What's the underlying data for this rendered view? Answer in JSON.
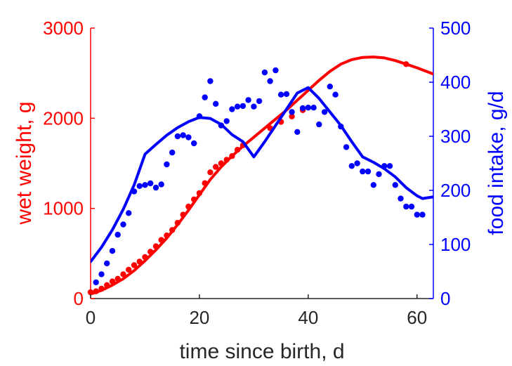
{
  "chart_data": {
    "type": "line",
    "xlabel": "time since birth, d",
    "ylabel_left": "wet weight, g",
    "ylabel_right": "food intake, g/d",
    "xlim": [
      0,
      63
    ],
    "ylim_left": [
      0,
      3000
    ],
    "ylim_right": [
      0,
      500
    ],
    "x_ticks": [
      0,
      20,
      40,
      60
    ],
    "y_ticks_left": [
      0,
      1000,
      2000,
      3000
    ],
    "y_ticks_right": [
      0,
      100,
      200,
      300,
      400,
      500
    ],
    "grid": false,
    "legend": "none",
    "colors": {
      "weight": "#ff0000",
      "intake": "#0000ff",
      "axis": "#262626"
    },
    "series": [
      {
        "axis": "left",
        "kind": "points",
        "color": "#ff0000",
        "x": [
          0,
          1,
          2,
          3,
          4,
          5,
          6,
          7,
          8,
          9,
          10,
          11,
          12,
          13,
          14,
          15,
          16,
          17,
          18,
          19,
          20,
          21,
          22,
          23,
          24,
          25,
          26,
          27,
          28,
          33,
          35,
          37,
          39,
          58
        ],
        "y": [
          70,
          80,
          110,
          150,
          190,
          220,
          270,
          320,
          370,
          410,
          460,
          520,
          580,
          650,
          700,
          760,
          840,
          930,
          1020,
          1100,
          1170,
          1280,
          1400,
          1460,
          1500,
          1540,
          1580,
          1650,
          1700,
          1890,
          1960,
          2020,
          2090,
          2600
        ]
      },
      {
        "axis": "left",
        "kind": "line",
        "color": "#ff0000",
        "x": [
          0,
          2,
          4,
          6,
          8,
          10,
          12,
          14,
          16,
          18,
          20,
          22,
          24,
          26,
          28,
          30,
          32,
          34,
          36,
          38,
          40,
          42,
          44,
          46,
          48,
          50,
          52,
          54,
          56,
          58,
          60,
          63
        ],
        "y": [
          50,
          90,
          150,
          220,
          310,
          420,
          540,
          670,
          820,
          980,
          1150,
          1320,
          1460,
          1580,
          1690,
          1790,
          1890,
          1990,
          2090,
          2200,
          2310,
          2420,
          2520,
          2600,
          2650,
          2675,
          2680,
          2670,
          2640,
          2600,
          2560,
          2490
        ]
      },
      {
        "axis": "right",
        "kind": "points",
        "color": "#0000ff",
        "x": [
          1,
          2,
          3,
          4,
          5,
          6,
          7,
          8,
          9,
          10,
          11,
          12,
          13,
          14,
          15,
          16,
          17,
          18,
          19,
          20,
          21,
          22,
          23,
          24,
          25,
          26,
          27,
          28,
          29,
          30,
          31,
          32,
          33,
          34,
          35,
          36,
          37,
          38,
          39,
          40,
          41,
          42,
          43,
          44,
          45,
          46,
          47,
          48,
          49,
          50,
          51,
          52,
          53,
          54,
          55,
          56,
          57,
          58,
          59,
          60,
          61
        ],
        "y": [
          30,
          45,
          65,
          88,
          118,
          137,
          158,
          198,
          208,
          210,
          213,
          205,
          211,
          248,
          270,
          300,
          302,
          298,
          287,
          337,
          372,
          402,
          360,
          320,
          328,
          350,
          355,
          356,
          367,
          355,
          365,
          418,
          402,
          422,
          377,
          378,
          345,
          308,
          352,
          353,
          353,
          322,
          345,
          392,
          377,
          318,
          280,
          245,
          250,
          235,
          235,
          210,
          230,
          245,
          245,
          210,
          185,
          170,
          170,
          155,
          155
        ]
      },
      {
        "axis": "right",
        "kind": "line",
        "color": "#0000ff",
        "x": [
          0,
          2,
          4,
          6,
          8,
          10,
          12,
          14,
          16,
          18,
          20,
          22,
          24,
          26,
          28,
          30,
          32,
          34,
          36,
          38,
          40,
          42,
          44,
          46,
          48,
          50,
          52,
          54,
          56,
          58,
          60,
          61,
          63
        ],
        "y": [
          68,
          95,
          127,
          165,
          210,
          267,
          285,
          302,
          316,
          327,
          335,
          333,
          322,
          303,
          290,
          262,
          290,
          320,
          350,
          380,
          390,
          370,
          345,
          320,
          290,
          262,
          252,
          240,
          225,
          205,
          190,
          185,
          188
        ]
      }
    ]
  }
}
